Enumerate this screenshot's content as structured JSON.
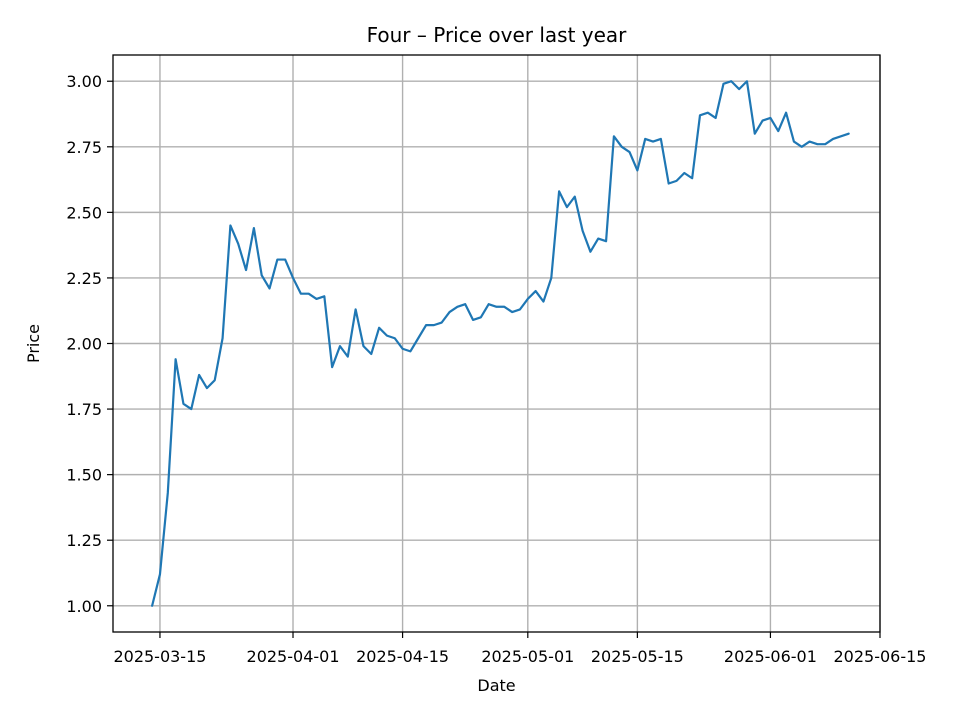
{
  "chart_data": {
    "type": "line",
    "title": "Four – Price over last year",
    "xlabel": "Date",
    "ylabel": "Price",
    "x_axis": {
      "type": "date",
      "ticks": [
        "2025-03-15",
        "2025-04-01",
        "2025-04-15",
        "2025-05-01",
        "2025-05-15",
        "2025-06-01",
        "2025-06-15"
      ],
      "range": [
        "2025-03-09",
        "2025-06-15"
      ]
    },
    "y_axis": {
      "ticks": [
        "1.00",
        "1.25",
        "1.50",
        "1.75",
        "2.00",
        "2.25",
        "2.50",
        "2.75",
        "3.00"
      ],
      "range": [
        0.9,
        3.1
      ]
    },
    "grid": true,
    "colors": {
      "line": "#1f77b4"
    },
    "series": [
      {
        "x": [
          "2025-03-14",
          "2025-03-15",
          "2025-03-16",
          "2025-03-17",
          "2025-03-18",
          "2025-03-19",
          "2025-03-20",
          "2025-03-21",
          "2025-03-22",
          "2025-03-23",
          "2025-03-24",
          "2025-03-25",
          "2025-03-26",
          "2025-03-27",
          "2025-03-28",
          "2025-03-29",
          "2025-03-30",
          "2025-03-31",
          "2025-04-01",
          "2025-04-02",
          "2025-04-03",
          "2025-04-04",
          "2025-04-05",
          "2025-04-06",
          "2025-04-07",
          "2025-04-08",
          "2025-04-09",
          "2025-04-10",
          "2025-04-11",
          "2025-04-12",
          "2025-04-13",
          "2025-04-14",
          "2025-04-15",
          "2025-04-16",
          "2025-04-17",
          "2025-04-18",
          "2025-04-19",
          "2025-04-20",
          "2025-04-21",
          "2025-04-22",
          "2025-04-23",
          "2025-04-24",
          "2025-04-25",
          "2025-04-26",
          "2025-04-27",
          "2025-04-28",
          "2025-04-29",
          "2025-04-30",
          "2025-05-01",
          "2025-05-02",
          "2025-05-03",
          "2025-05-04",
          "2025-05-05",
          "2025-05-06",
          "2025-05-07",
          "2025-05-08",
          "2025-05-09",
          "2025-05-10",
          "2025-05-11",
          "2025-05-12",
          "2025-05-13",
          "2025-05-14",
          "2025-05-15",
          "2025-05-16",
          "2025-05-17",
          "2025-05-18",
          "2025-05-19",
          "2025-05-20",
          "2025-05-21",
          "2025-05-22",
          "2025-05-23",
          "2025-05-24",
          "2025-05-25",
          "2025-05-26",
          "2025-05-27",
          "2025-05-28",
          "2025-05-29",
          "2025-05-30",
          "2025-05-31",
          "2025-06-01",
          "2025-06-02",
          "2025-06-03",
          "2025-06-04",
          "2025-06-05",
          "2025-06-06",
          "2025-06-07",
          "2025-06-08",
          "2025-06-09",
          "2025-06-10",
          "2025-06-11"
        ],
        "y": [
          1.0,
          1.12,
          1.43,
          1.94,
          1.77,
          1.75,
          1.88,
          1.83,
          1.86,
          2.02,
          2.45,
          2.38,
          2.28,
          2.44,
          2.26,
          2.21,
          2.32,
          2.32,
          2.25,
          2.19,
          2.19,
          2.17,
          2.18,
          1.91,
          1.99,
          1.95,
          2.13,
          1.99,
          1.96,
          2.06,
          2.03,
          2.02,
          1.98,
          1.97,
          2.02,
          2.07,
          2.07,
          2.08,
          2.12,
          2.14,
          2.15,
          2.09,
          2.1,
          2.15,
          2.14,
          2.14,
          2.12,
          2.13,
          2.17,
          2.2,
          2.16,
          2.25,
          2.58,
          2.52,
          2.56,
          2.43,
          2.35,
          2.4,
          2.39,
          2.79,
          2.75,
          2.73,
          2.66,
          2.78,
          2.77,
          2.78,
          2.61,
          2.62,
          2.65,
          2.63,
          2.87,
          2.88,
          2.86,
          2.99,
          3.0,
          2.97,
          3.0,
          2.8,
          2.85,
          2.86,
          2.81,
          2.88,
          2.77,
          2.75,
          2.77,
          2.76,
          2.76,
          2.78,
          2.79,
          2.8
        ]
      }
    ]
  }
}
